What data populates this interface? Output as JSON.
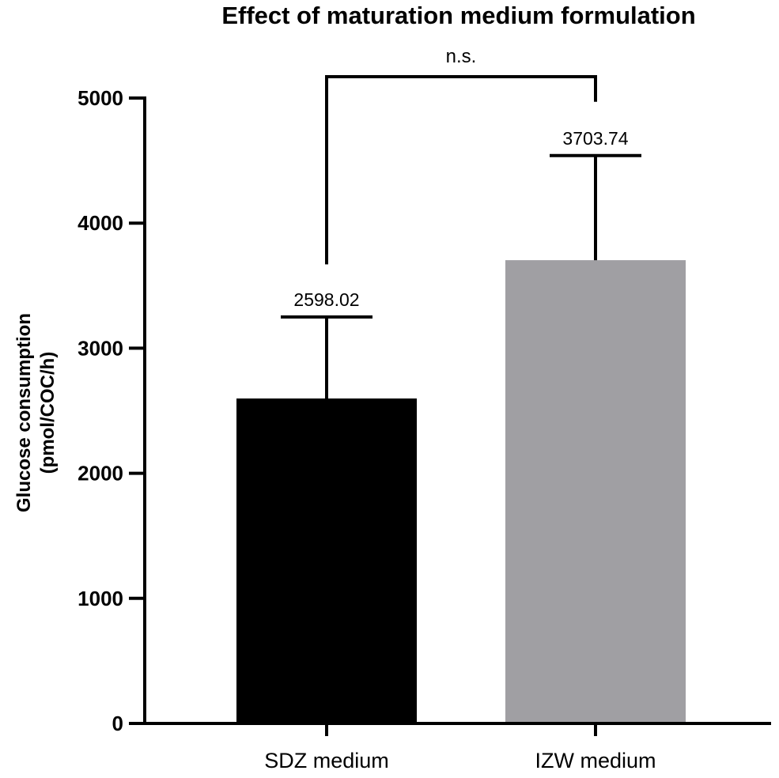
{
  "chart_data": {
    "type": "bar",
    "title": "Effect of maturation medium formulation",
    "ylabel_lines": [
      "Glucose consumption",
      "(pmol/COC/h)"
    ],
    "xlabel": "",
    "categories": [
      "SDZ medium",
      "IZW medium"
    ],
    "values": [
      2598.02,
      3703.74
    ],
    "error_upper": [
      3250,
      4540
    ],
    "data_labels": [
      "2598.02",
      "3703.74"
    ],
    "bar_colors": [
      "#000000",
      "#a09fa3"
    ],
    "ylim": [
      0,
      5000
    ],
    "yticks": [
      0,
      1000,
      2000,
      3000,
      4000,
      5000
    ],
    "ytick_labels": [
      "0",
      "1000",
      "2000",
      "3000",
      "4000",
      "5000"
    ],
    "significance": {
      "label": "n.s.",
      "between": [
        0,
        1
      ],
      "left_drop_to": 3670,
      "right_drop_to": 4970
    },
    "grid": false,
    "legend": "none"
  }
}
